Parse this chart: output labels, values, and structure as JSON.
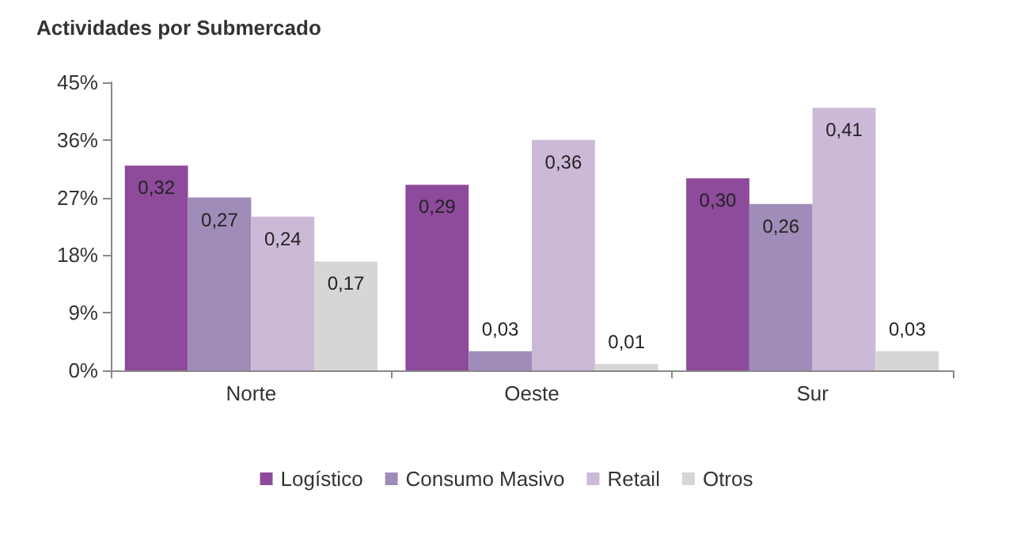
{
  "chart_data": {
    "type": "bar",
    "title": "Actividades por Submercado",
    "categories": [
      "Norte",
      "Oeste",
      "Sur"
    ],
    "series": [
      {
        "name": "Logístico",
        "color": "#8e4a9b",
        "values": [
          0.32,
          0.29,
          0.3
        ],
        "value_labels": [
          "0,32",
          "0,29",
          "0,30"
        ]
      },
      {
        "name": "Consumo Masivo",
        "color": "#9f8cb8",
        "values": [
          0.27,
          0.03,
          0.26
        ],
        "value_labels": [
          "0,27",
          "0,03",
          "0,26"
        ]
      },
      {
        "name": "Retail",
        "color": "#ccb9d8",
        "values": [
          0.24,
          0.36,
          0.41
        ],
        "value_labels": [
          "0,24",
          "0,36",
          "0,41"
        ]
      },
      {
        "name": "Otros",
        "color": "#d6d6d6",
        "values": [
          0.17,
          0.01,
          0.03
        ],
        "value_labels": [
          "0,17",
          "0,01",
          "0,03"
        ]
      }
    ],
    "ylim": [
      0,
      0.45
    ],
    "yticks": [
      {
        "value": 0,
        "label": "0%"
      },
      {
        "value": 0.09,
        "label": "9%"
      },
      {
        "value": 0.18,
        "label": "18%"
      },
      {
        "value": 0.27,
        "label": "27%"
      },
      {
        "value": 0.36,
        "label": "36%"
      },
      {
        "value": 0.45,
        "label": "45%"
      }
    ],
    "grid": false,
    "legend": "bottom"
  }
}
